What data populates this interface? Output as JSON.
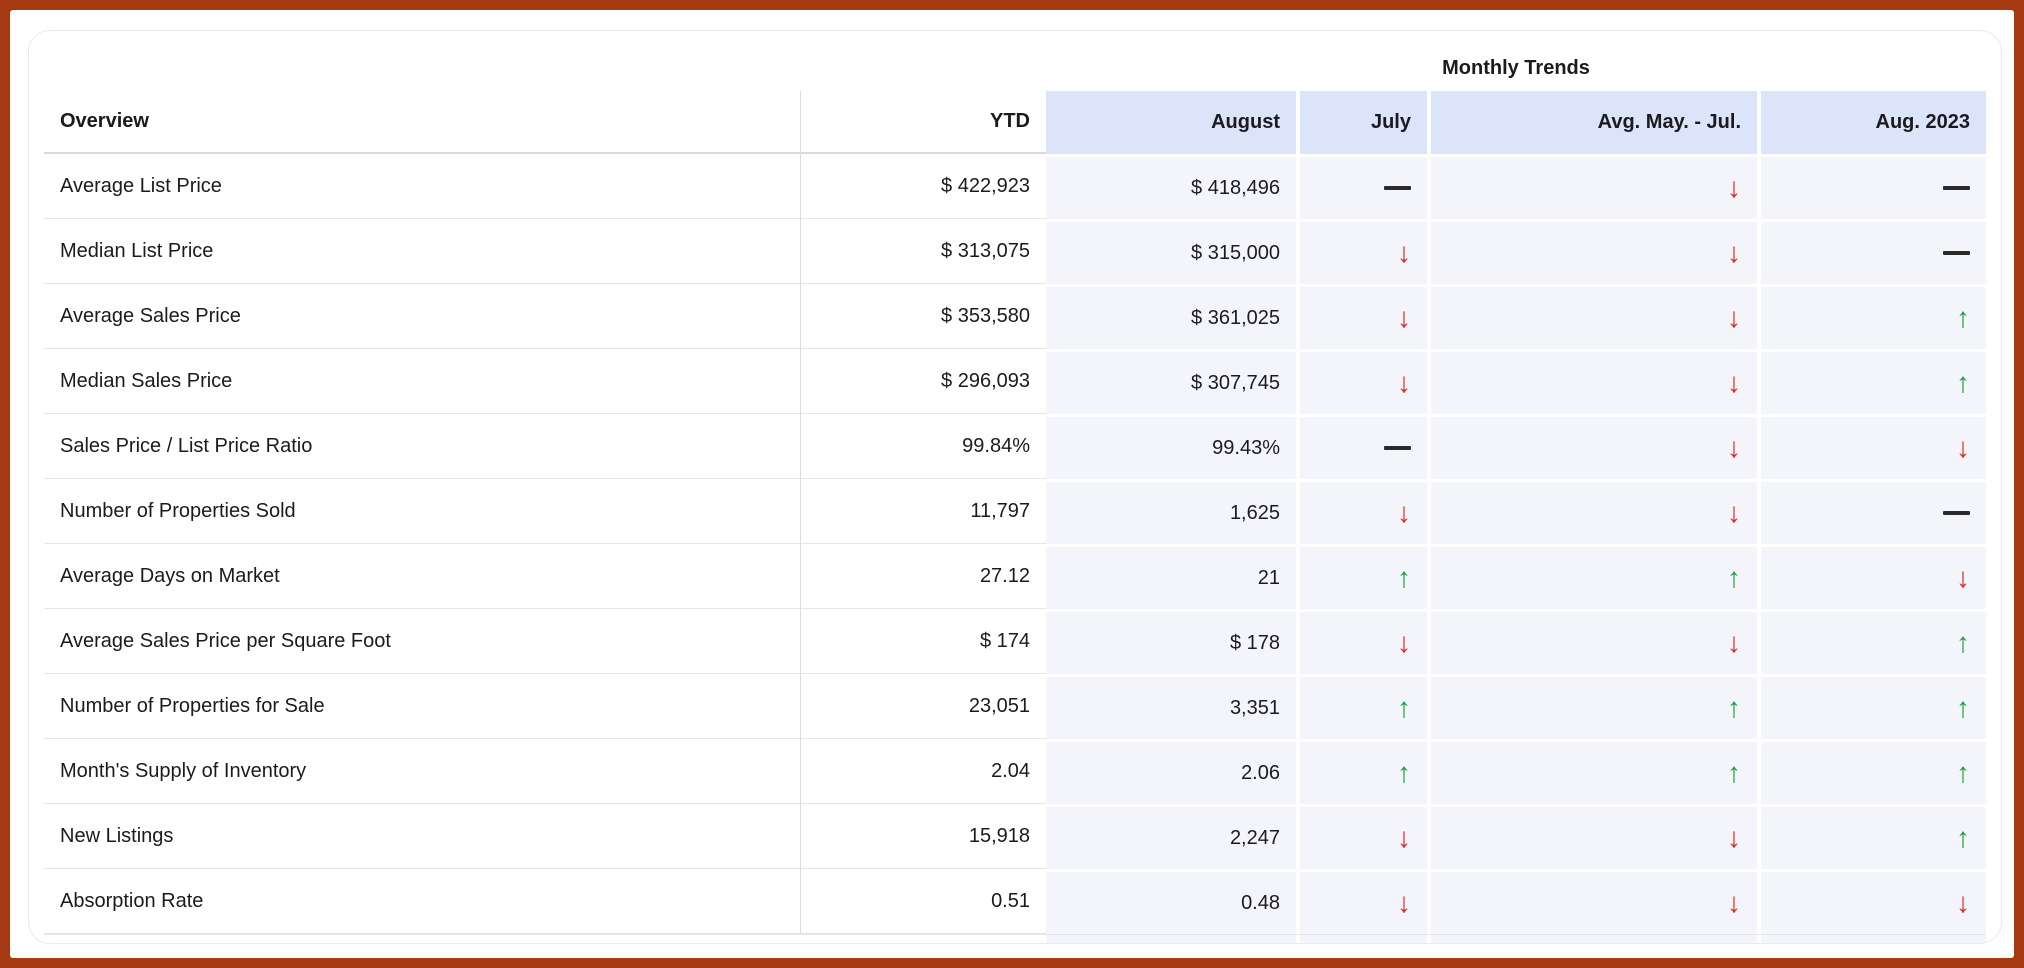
{
  "colors": {
    "frame": "#a53a12",
    "header_blue": "#dbe4f8",
    "tile_lavender": "#f4f4fb",
    "trend_up_green": "#16a33a",
    "trend_down_red": "#e02a1e",
    "trend_flat_black": "#2b2b2b"
  },
  "icons": {
    "up_arrow": "↑",
    "down_arrow": "↓",
    "flat_dash": "—"
  },
  "chart_data": {
    "type": "table",
    "title": "Monthly Trends",
    "columns": [
      "Overview",
      "YTD",
      "August",
      "July",
      "Avg. May. - Jul.",
      "Aug. 2023"
    ],
    "trend_legend": {
      "up": "green up arrow",
      "down": "red down arrow",
      "flat": "black dash (no change)"
    },
    "rows": [
      {
        "label": "Average List Price",
        "ytd": "$ 422,923",
        "august": "$ 418,496",
        "july": "flat",
        "avg_may_jul": "down",
        "aug_2023": "flat"
      },
      {
        "label": "Median List Price",
        "ytd": "$ 313,075",
        "august": "$ 315,000",
        "july": "down",
        "avg_may_jul": "down",
        "aug_2023": "flat"
      },
      {
        "label": "Average Sales Price",
        "ytd": "$ 353,580",
        "august": "$ 361,025",
        "july": "down",
        "avg_may_jul": "down",
        "aug_2023": "up"
      },
      {
        "label": "Median Sales Price",
        "ytd": "$ 296,093",
        "august": "$ 307,745",
        "july": "down",
        "avg_may_jul": "down",
        "aug_2023": "up"
      },
      {
        "label": "Sales Price / List Price Ratio",
        "ytd": "99.84%",
        "august": "99.43%",
        "july": "flat",
        "avg_may_jul": "down",
        "aug_2023": "down"
      },
      {
        "label": "Number of Properties Sold",
        "ytd": "11,797",
        "august": "1,625",
        "july": "down",
        "avg_may_jul": "down",
        "aug_2023": "flat"
      },
      {
        "label": "Average Days on Market",
        "ytd": "27.12",
        "august": "21",
        "july": "up",
        "avg_may_jul": "up",
        "aug_2023": "down"
      },
      {
        "label": "Average Sales Price per Square Foot",
        "ytd": "$ 174",
        "august": "$ 178",
        "july": "down",
        "avg_may_jul": "down",
        "aug_2023": "up"
      },
      {
        "label": "Number of Properties for Sale",
        "ytd": "23,051",
        "august": "3,351",
        "july": "up",
        "avg_may_jul": "up",
        "aug_2023": "up"
      },
      {
        "label": "Month's Supply of Inventory",
        "ytd": "2.04",
        "august": "2.06",
        "july": "up",
        "avg_may_jul": "up",
        "aug_2023": "up"
      },
      {
        "label": "New Listings",
        "ytd": "15,918",
        "august": "2,247",
        "july": "down",
        "avg_may_jul": "down",
        "aug_2023": "up"
      },
      {
        "label": "Absorption Rate",
        "ytd": "0.51",
        "august": "0.48",
        "july": "down",
        "avg_may_jul": "down",
        "aug_2023": "down"
      }
    ]
  }
}
